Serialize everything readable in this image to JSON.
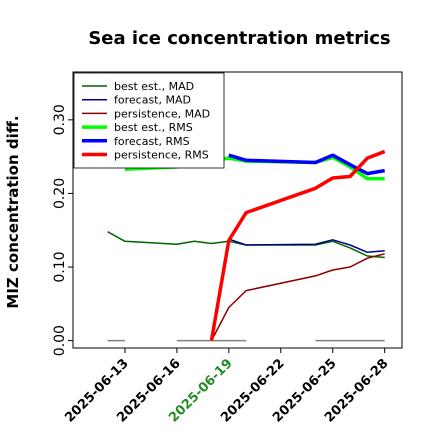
{
  "chart_data": {
    "type": "line",
    "title": "Sea ice concentration metrics",
    "ylabel": "MIZ concentration diff.",
    "xlabel": "",
    "xlim": [
      "2025-06-10",
      "2025-06-29"
    ],
    "ylim": [
      -0.01,
      0.365
    ],
    "yticks": [
      0.0,
      0.1,
      0.2,
      0.3
    ],
    "ytick_labels": [
      "0.00",
      "0.10",
      "0.20",
      "0.30"
    ],
    "xticks": [
      "2025-06-13",
      "2025-06-16",
      "2025-06-19",
      "2025-06-22",
      "2025-06-25",
      "2025-06-28"
    ],
    "xtick_colors": [
      "#000000",
      "#000000",
      "#228b22",
      "#000000",
      "#000000",
      "#000000"
    ],
    "legend_position": "top-left",
    "grid": false,
    "series": [
      {
        "name": "best est., MAD",
        "color": "#006400",
        "width": 1.5,
        "points": [
          [
            "2025-06-12",
            0.148
          ],
          [
            "2025-06-13",
            0.135
          ],
          [
            "2025-06-16",
            0.131
          ],
          [
            "2025-06-17",
            0.135
          ],
          [
            "2025-06-18",
            0.132
          ],
          [
            "2025-06-19",
            0.135
          ],
          [
            "2025-06-20",
            0.13
          ],
          [
            "2025-06-24",
            0.13
          ],
          [
            "2025-06-25",
            0.135
          ],
          [
            "2025-06-26",
            0.126
          ],
          [
            "2025-06-27",
            0.115
          ],
          [
            "2025-06-28",
            0.113
          ]
        ]
      },
      {
        "name": "forecast,  MAD",
        "color": "#00008b",
        "width": 1.5,
        "points": [
          [
            "2025-06-19",
            0.138
          ],
          [
            "2025-06-20",
            0.13
          ],
          [
            "2025-06-24",
            0.131
          ],
          [
            "2025-06-25",
            0.137
          ],
          [
            "2025-06-26",
            0.13
          ],
          [
            "2025-06-27",
            0.12
          ],
          [
            "2025-06-28",
            0.122
          ]
        ]
      },
      {
        "name": "persistence, MAD",
        "color": "#8b0000",
        "width": 1.5,
        "points": [
          [
            "2025-06-18",
            0.0
          ],
          [
            "2025-06-19",
            0.045
          ],
          [
            "2025-06-20",
            0.068
          ],
          [
            "2025-06-24",
            0.088
          ],
          [
            "2025-06-25",
            0.096
          ],
          [
            "2025-06-26",
            0.1
          ],
          [
            "2025-06-27",
            0.112
          ],
          [
            "2025-06-28",
            0.118
          ]
        ]
      },
      {
        "name": "best est., RMS",
        "color": "#00ff00",
        "width": 3.5,
        "points": [
          [
            "2025-06-13",
            0.233
          ],
          [
            "2025-06-16",
            0.236
          ],
          [
            "2025-06-19",
            0.248
          ],
          [
            "2025-06-20",
            0.244
          ],
          [
            "2025-06-24",
            0.242
          ],
          [
            "2025-06-25",
            0.249
          ],
          [
            "2025-06-26",
            0.236
          ],
          [
            "2025-06-27",
            0.22
          ],
          [
            "2025-06-28",
            0.22
          ]
        ]
      },
      {
        "name": "forecast,  RMS",
        "color": "#0000ff",
        "width": 3.5,
        "points": [
          [
            "2025-06-19",
            0.252
          ],
          [
            "2025-06-20",
            0.245
          ],
          [
            "2025-06-24",
            0.242
          ],
          [
            "2025-06-25",
            0.252
          ],
          [
            "2025-06-26",
            0.239
          ],
          [
            "2025-06-27",
            0.227
          ],
          [
            "2025-06-28",
            0.231
          ]
        ]
      },
      {
        "name": "persistence, RMS",
        "color": "#ff0000",
        "width": 3.5,
        "points": [
          [
            "2025-06-18",
            0.0
          ],
          [
            "2025-06-19",
            0.136
          ],
          [
            "2025-06-20",
            0.174
          ],
          [
            "2025-06-24",
            0.207
          ],
          [
            "2025-06-25",
            0.221
          ],
          [
            "2025-06-26",
            0.223
          ],
          [
            "2025-06-27",
            0.248
          ],
          [
            "2025-06-28",
            0.257
          ]
        ]
      }
    ],
    "zero_segments": [
      [
        "2025-06-12",
        "2025-06-13"
      ],
      [
        "2025-06-16",
        "2025-06-20"
      ],
      [
        "2025-06-24",
        "2025-06-28"
      ]
    ],
    "zero_segment_color": "#808080",
    "connector_color": "#ff0000"
  }
}
